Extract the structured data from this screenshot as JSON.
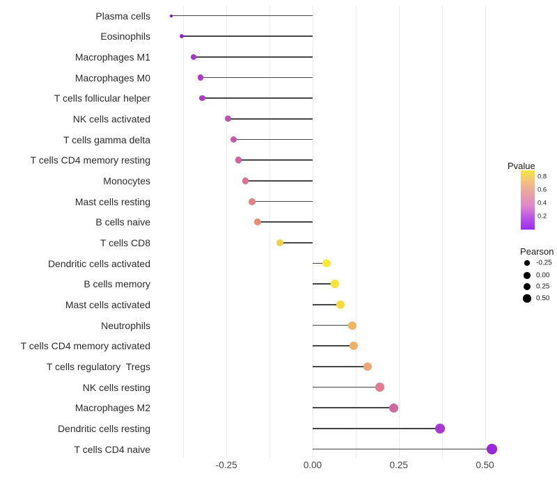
{
  "chart_data": {
    "type": "scatter",
    "style": "lollipop",
    "orientation": "horizontal",
    "xlabel": "",
    "ylabel": "",
    "xlim": [
      -0.45,
      0.57
    ],
    "grid": "vertical-only",
    "x_axis": {
      "tick_values": [
        -0.25,
        0.0,
        0.25,
        0.5
      ],
      "tick_labels": [
        "-0.25",
        "0.00",
        "0.25",
        "0.50"
      ],
      "gridline_values": [
        -0.375,
        -0.25,
        -0.125,
        0.0,
        0.125,
        0.25,
        0.375,
        0.5
      ]
    },
    "points": [
      {
        "category": "Plasma cells",
        "pearson": -0.41,
        "color": "#7a16d0",
        "diameter": 4
      },
      {
        "category": "Eosinophils",
        "pearson": -0.38,
        "color": "#9727cd",
        "diameter": 6
      },
      {
        "category": "Macrophages M1",
        "pearson": -0.345,
        "color": "#a634c6",
        "diameter": 8
      },
      {
        "category": "Macrophages M0",
        "pearson": -0.325,
        "color": "#ab3cc3",
        "diameter": 8.5
      },
      {
        "category": "T cells follicular helper",
        "pearson": -0.32,
        "color": "#ad3fc2",
        "diameter": 8.5
      },
      {
        "category": "NK cells activated",
        "pearson": -0.245,
        "color": "#bc51b2",
        "diameter": 9
      },
      {
        "category": "T cells gamma delta",
        "pearson": -0.23,
        "color": "#c558a8",
        "diameter": 9
      },
      {
        "category": "T cells CD4 memory resting",
        "pearson": -0.215,
        "color": "#cf639d",
        "diameter": 9.5
      },
      {
        "category": "Monocytes",
        "pearson": -0.195,
        "color": "#da7190",
        "diameter": 9.5
      },
      {
        "category": "Mast cells resting",
        "pearson": -0.175,
        "color": "#e28381",
        "diameter": 10
      },
      {
        "category": "B cells naive",
        "pearson": -0.16,
        "color": "#e78d72",
        "diameter": 10
      },
      {
        "category": "T cells CD8",
        "pearson": -0.095,
        "color": "#f3cf45",
        "diameter": 10.5
      },
      {
        "category": "Dendritic cells activated",
        "pearson": 0.04,
        "color": "#f7ea33",
        "diameter": 11.5
      },
      {
        "category": "B cells memory",
        "pearson": 0.065,
        "color": "#f7e338",
        "diameter": 11.5
      },
      {
        "category": "Mast cells activated",
        "pearson": 0.08,
        "color": "#f5dc3c",
        "diameter": 12
      },
      {
        "category": "Neutrophils",
        "pearson": 0.115,
        "color": "#efb661",
        "diameter": 12
      },
      {
        "category": "T cells CD4 memory activated",
        "pearson": 0.12,
        "color": "#eeb064",
        "diameter": 12
      },
      {
        "category": "T cells regulatory  Tregs",
        "pearson": 0.16,
        "color": "#eca47a",
        "diameter": 12.5
      },
      {
        "category": "NK cells resting",
        "pearson": 0.195,
        "color": "#e07b90",
        "diameter": 12.5
      },
      {
        "category": "Macrophages M2",
        "pearson": 0.235,
        "color": "#d06ba2",
        "diameter": 13
      },
      {
        "category": "Dendritic cells resting",
        "pearson": 0.37,
        "color": "#a937d8",
        "diameter": 13.5
      },
      {
        "category": "T cells CD4 naive",
        "pearson": 0.52,
        "color": "#9b27da",
        "diameter": 14.5
      }
    ],
    "legend_pvalue": {
      "title": "Pvalue",
      "tick_labels": [
        "0.8",
        "0.6",
        "0.4",
        "0.2"
      ],
      "tick_values": [
        0.8,
        0.6,
        0.4,
        0.2
      ],
      "gradient_top_to_bottom": [
        "#f8e53d",
        "#f3bd84",
        "#e9a0a6",
        "#dd86cb",
        "#bb55e8",
        "#9c2cf2"
      ]
    },
    "legend_pearson": {
      "title": "Pearson",
      "entries": [
        {
          "label": "-0.25",
          "diameter": 7.3
        },
        {
          "label": "0.00",
          "diameter": 9.3
        },
        {
          "label": "0.25",
          "diameter": 10
        },
        {
          "label": "0.50",
          "diameter": 11.3
        }
      ]
    },
    "colors": {
      "stem": "#454545",
      "gridline": "#ececec",
      "axis_text": "#454545",
      "label_text": "#2b2b2b"
    }
  }
}
